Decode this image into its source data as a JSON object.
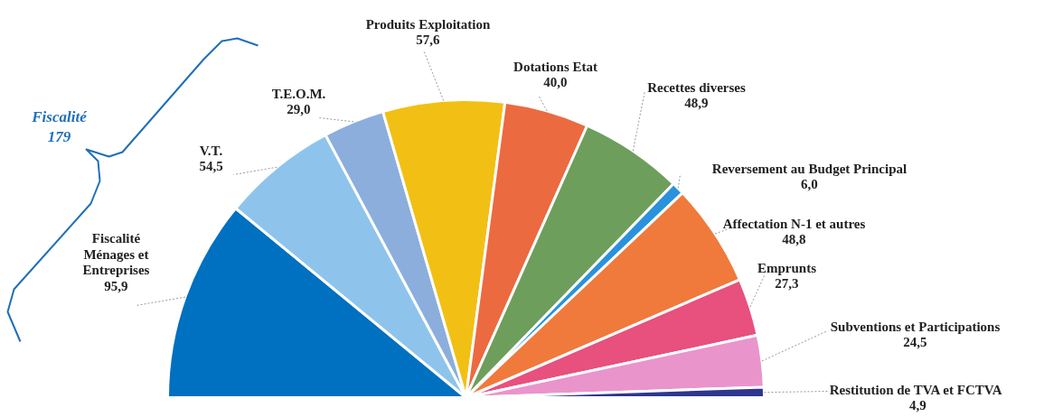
{
  "chart_data": {
    "type": "pie",
    "categories": [
      "Fiscalité\nMénages et\nEntreprises",
      "V.T.",
      "T.E.O.M.",
      "Produits Exploitation",
      "Dotations Etat",
      "Recettes diverses",
      "Reversement au Budget Principal",
      "Affectation N-1 et autres",
      "Emprunts",
      "Subventions et Participations",
      "Restitution de TVA et  FCTVA"
    ],
    "values": [
      95.9,
      54.5,
      29.0,
      57.6,
      40.0,
      48.9,
      6.0,
      48.8,
      27.3,
      24.5,
      4.9
    ],
    "colors": [
      "#0070c0",
      "#8ec4ec",
      "#8caedc",
      "#f2c014",
      "#ec6a40",
      "#6e9e5c",
      "#2a92dc",
      "#f07a3c",
      "#e8507e",
      "#ea94cc",
      "#2e3690"
    ],
    "value_labels": [
      "95,9",
      "54,5",
      "29,0",
      "57,6",
      "40,0",
      "48,9",
      "6,0",
      "48,8",
      "27,3",
      "24,5",
      "4,9"
    ],
    "annotations": [
      "Fiscalité\n179"
    ]
  }
}
